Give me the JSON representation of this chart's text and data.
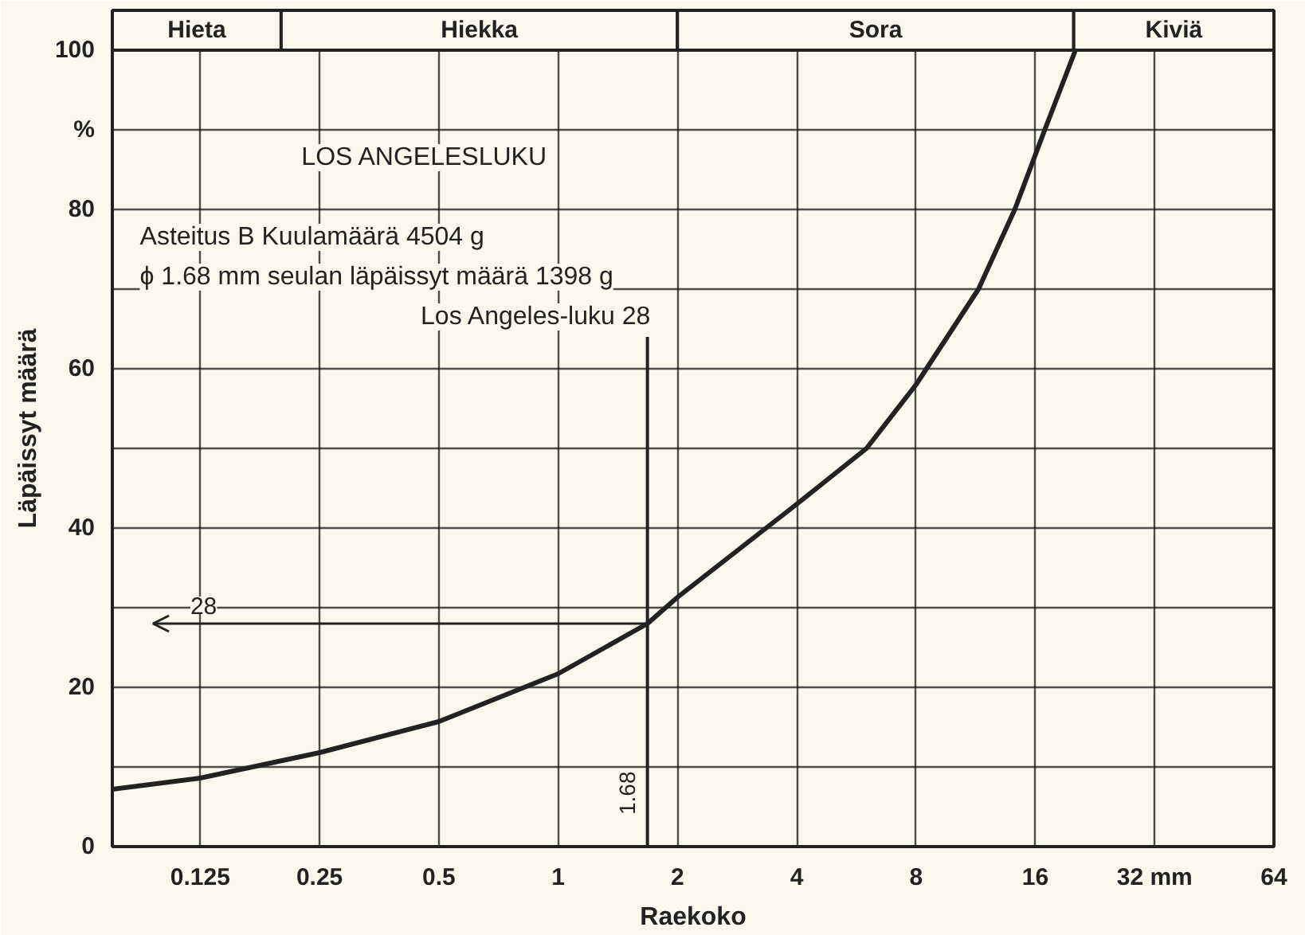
{
  "chart_data": {
    "type": "line",
    "xlabel": "Raekoko",
    "ylabel": "Läpäissyt määrä",
    "x": [
      0.075,
      0.125,
      0.25,
      0.5,
      1,
      1.68,
      2,
      4,
      6,
      8,
      11.5,
      14.2,
      16.9,
      20.2
    ],
    "series": [
      {
        "color": "#222222",
        "values": [
          7.2,
          8.6,
          11.8,
          15.7,
          21.7,
          28,
          31.3,
          43,
          50,
          58,
          70,
          80,
          90,
          100
        ]
      }
    ],
    "log": "x",
    "xlim": [
      0.075,
      64
    ],
    "ylim": [
      0,
      105
    ],
    "xticks": [
      0.125,
      0.25,
      0.5,
      1,
      2,
      4,
      8,
      16,
      {
        "value": 32,
        "label": "32 mm"
      },
      64
    ],
    "yticks": [
      0,
      {
        "value": 10,
        "label": null
      },
      20,
      {
        "value": 30,
        "label": null
      },
      40,
      {
        "value": 50,
        "label": null
      },
      60,
      {
        "value": 70,
        "label": null
      },
      80,
      {
        "value": 90,
        "label": "%"
      },
      100
    ],
    "grid": true,
    "marker": "none",
    "line_style": "solid",
    "bands": [
      {
        "axis": "x",
        "from": 0.075,
        "to": 0.2,
        "label": "Hieta"
      },
      {
        "axis": "x",
        "from": 0.2,
        "to": 2,
        "label": "Hiekka"
      },
      {
        "axis": "x",
        "from": 2,
        "to": 20,
        "label": "Sora"
      },
      {
        "axis": "x",
        "from": 20,
        "to": 64,
        "label": "Kiviä"
      }
    ],
    "ref_lines": [
      {
        "axis": "x",
        "value": 1.68,
        "label": "1.68"
      },
      {
        "axis": "y",
        "value": 28,
        "label": "28"
      }
    ],
    "annotations": [
      "LOS ANGELESLUKU",
      "Asteitus B Kuulamäärä 4504 g",
      "ϕ 1.68 mm seulan läpäissyt määrä 1398 g",
      "Los Angeles-luku 28"
    ]
  }
}
